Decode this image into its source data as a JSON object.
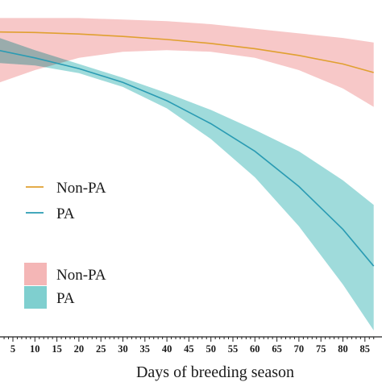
{
  "chart_data": {
    "type": "line",
    "xlabel": "Days of breeding season",
    "ylabel": "",
    "title": "",
    "x_ticks": [
      5,
      10,
      15,
      20,
      25,
      30,
      35,
      40,
      45,
      50,
      55,
      60,
      65,
      70,
      75,
      80,
      85
    ],
    "xlim": [
      0,
      87
    ],
    "series": [
      {
        "name": "Non-PA",
        "kind": "line",
        "color": "#E0A030",
        "x": [
          0,
          10,
          20,
          30,
          40,
          50,
          60,
          70,
          80,
          87
        ],
        "y": [
          0.975,
          0.973,
          0.968,
          0.96,
          0.95,
          0.937,
          0.92,
          0.898,
          0.87,
          0.842
        ]
      },
      {
        "name": "PA",
        "kind": "line",
        "color": "#2A9BB3",
        "x": [
          0,
          10,
          20,
          30,
          40,
          50,
          60,
          70,
          80,
          87
        ],
        "y": [
          0.92,
          0.89,
          0.855,
          0.81,
          0.75,
          0.675,
          0.585,
          0.47,
          0.33,
          0.21
        ]
      }
    ],
    "ribbons": [
      {
        "name": "Non-PA",
        "color": "#F4B6B6",
        "x": [
          0,
          10,
          20,
          30,
          40,
          50,
          60,
          70,
          80,
          87
        ],
        "lower": [
          0.8,
          0.85,
          0.89,
          0.91,
          0.915,
          0.91,
          0.89,
          0.85,
          0.79,
          0.73
        ],
        "upper": [
          1.02,
          1.02,
          1.02,
          1.015,
          1.01,
          1.0,
          0.985,
          0.97,
          0.955,
          0.94
        ]
      },
      {
        "name": "PA",
        "color": "#7FCFCF",
        "x": [
          0,
          10,
          20,
          30,
          40,
          50,
          60,
          70,
          80,
          87
        ],
        "lower": [
          0.875,
          0.865,
          0.84,
          0.795,
          0.725,
          0.625,
          0.5,
          0.34,
          0.15,
          0.0
        ],
        "upper": [
          0.965,
          0.915,
          0.87,
          0.825,
          0.775,
          0.72,
          0.655,
          0.585,
          0.49,
          0.41
        ]
      }
    ],
    "legend": {
      "lines": [
        {
          "label": "Non-PA",
          "color": "#E0A030"
        },
        {
          "label": "PA",
          "color": "#2A9BB3"
        }
      ],
      "ribbons": [
        {
          "label": "Non-PA",
          "color": "#F4B6B6"
        },
        {
          "label": "PA",
          "color": "#7FCFCF"
        }
      ],
      "placement": "left"
    },
    "grid": false
  }
}
